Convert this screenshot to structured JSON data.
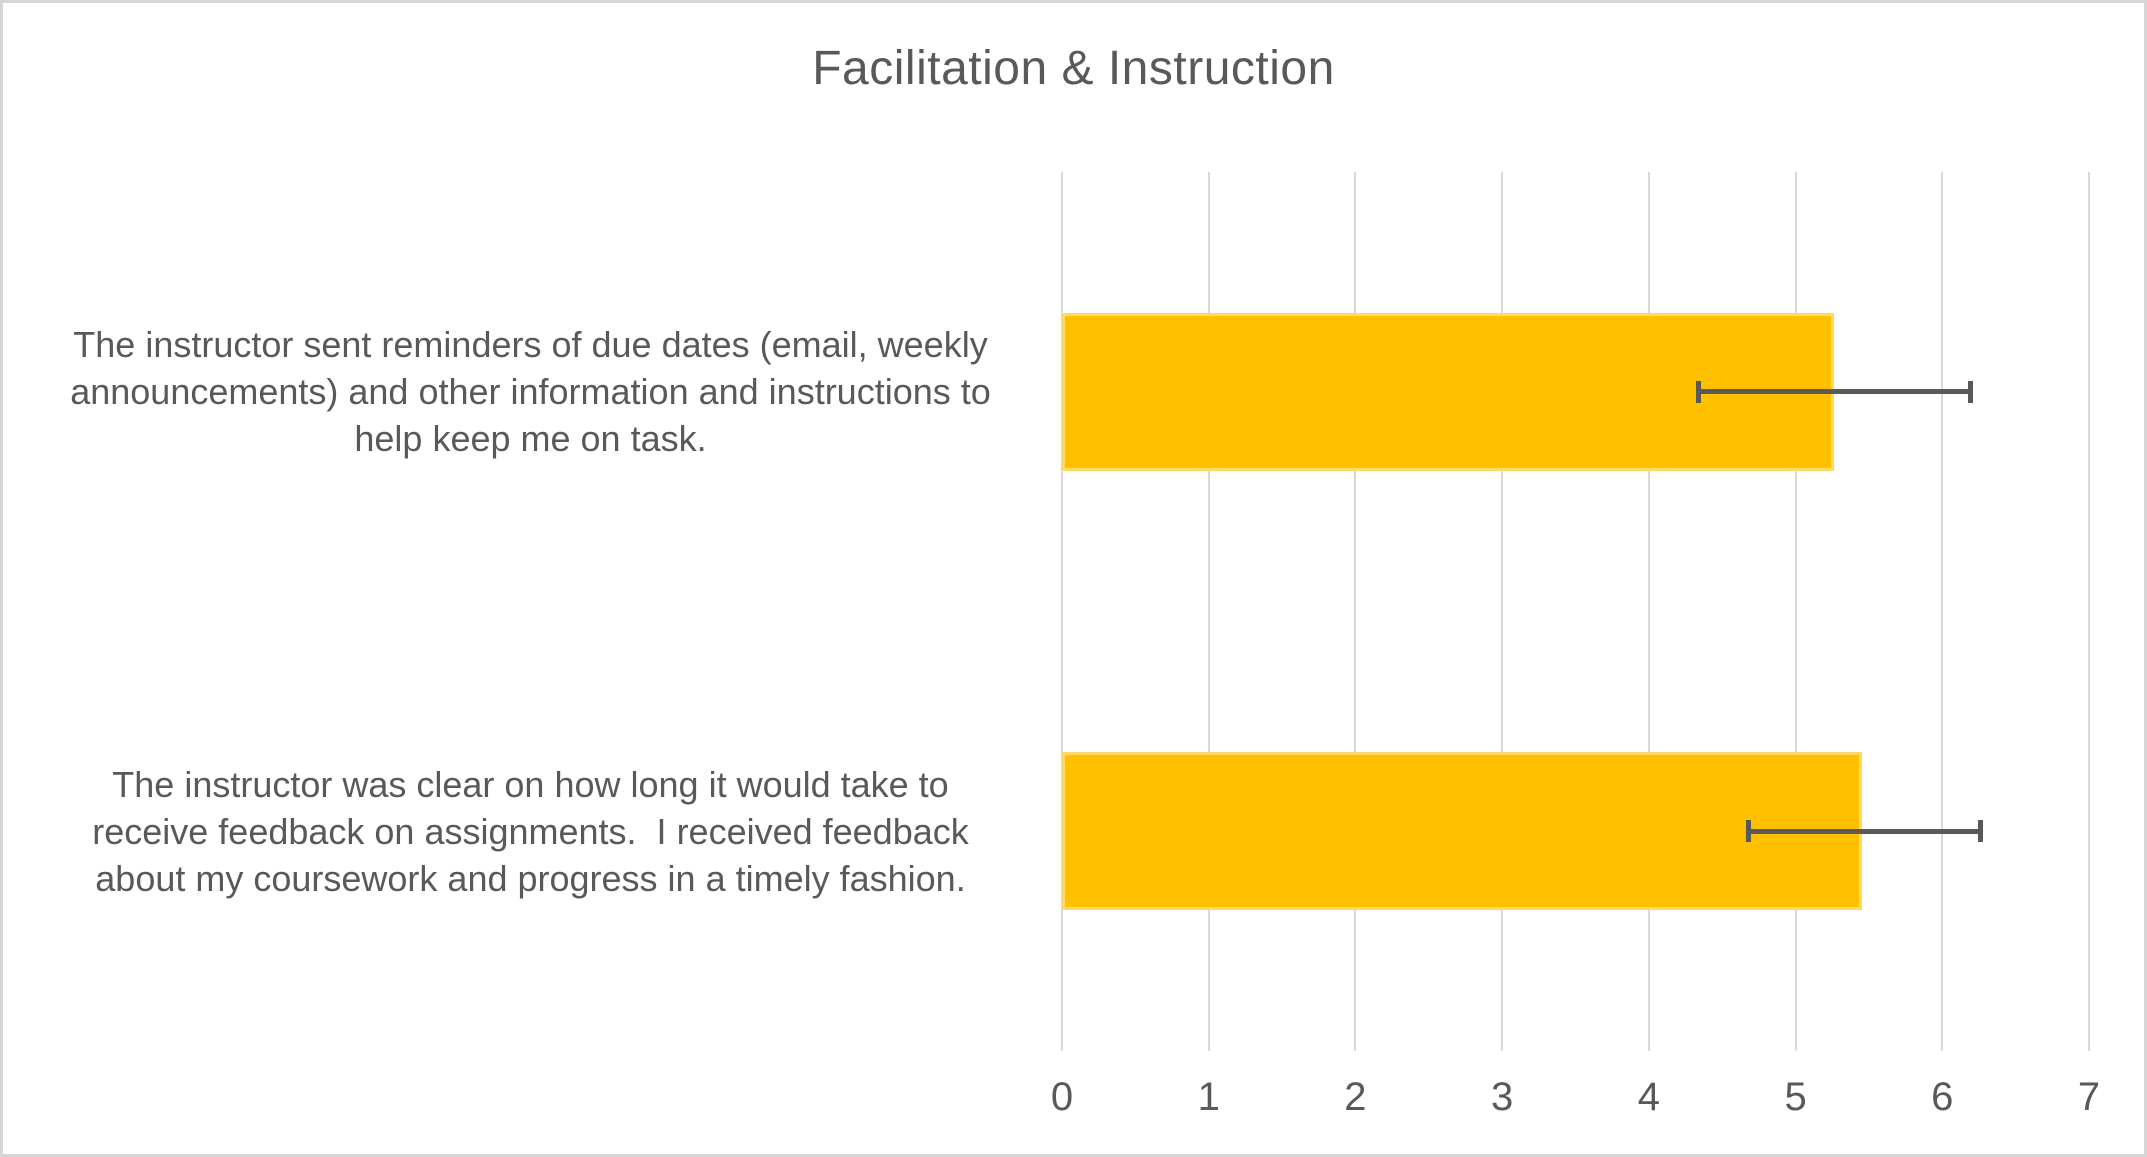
{
  "chart_data": {
    "type": "bar",
    "orientation": "horizontal",
    "title": "Facilitation & Instruction",
    "xlabel": "",
    "ylabel": "",
    "xlim": [
      0,
      7
    ],
    "x_ticks": [
      0,
      1,
      2,
      3,
      4,
      5,
      6,
      7
    ],
    "grid": "vertical",
    "legend": "none",
    "categories": [
      {
        "label": "The instructor sent reminders of due dates (email, weekly announcements) and other information and instructions to help keep me on task.",
        "lines": [
          "The instructor sent reminders of due dates (email, weekly",
          "announcements) and other information and instructions to",
          "help keep me on task."
        ]
      },
      {
        "label": "The instructor was clear on how long it would take to receive feedback on assignments.  I received feedback about my coursework and progress in a timely fashion.",
        "lines": [
          "The instructor was clear on how long it would take to",
          "receive feedback on assignments.  I received feedback",
          "about my coursework and progress in a timely fashion."
        ]
      }
    ],
    "values": [
      5.26,
      5.45
    ],
    "error_bars": [
      {
        "low": 4.32,
        "high": 6.21
      },
      {
        "low": 4.66,
        "high": 6.28
      }
    ],
    "colors": {
      "bar_fill": "#FFC000",
      "bar_border": "#FFD966",
      "gridline": "#D9D9D9",
      "text": "#595959",
      "error_bar": "#595959",
      "frame_border": "#D6D6D6"
    }
  }
}
